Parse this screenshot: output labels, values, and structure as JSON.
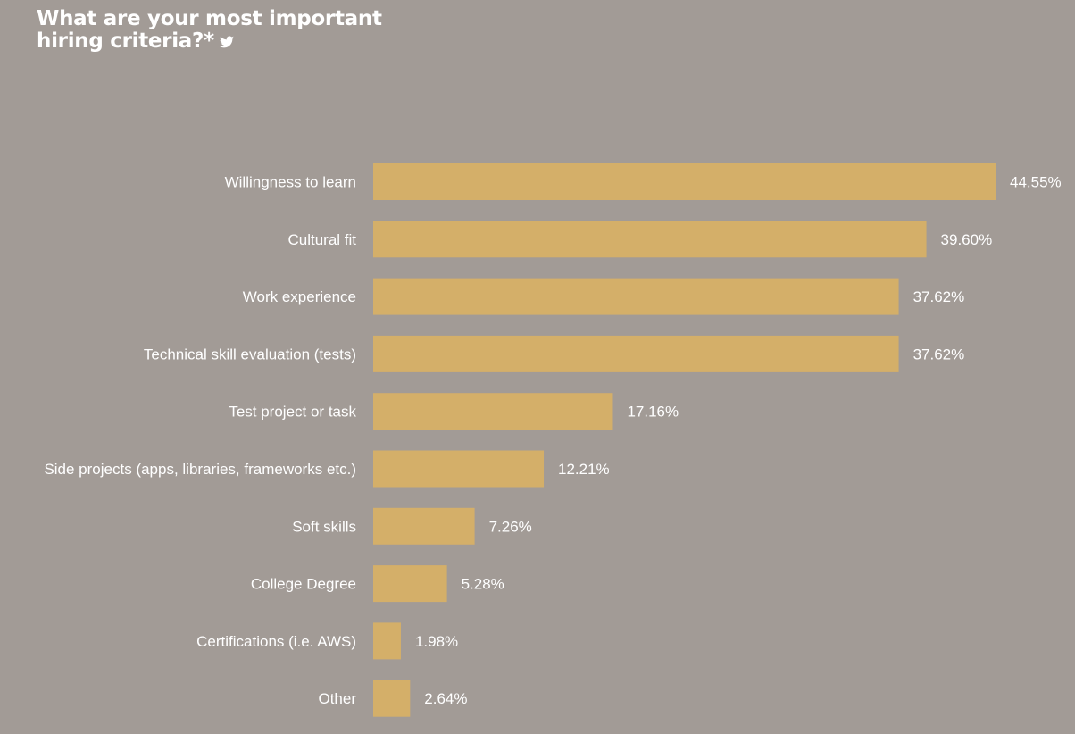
{
  "header": {
    "title_line1": "What are your most important",
    "title_line2": "hiring criteria?*",
    "share_icon": "twitter-icon"
  },
  "colors": {
    "background": "#a29b96",
    "bar": "#d4af69",
    "text": "#ffffff"
  },
  "chart_data": {
    "type": "bar",
    "orientation": "horizontal",
    "title": "What are your most important hiring criteria?*",
    "categories": [
      "Willingness to learn",
      "Cultural fit",
      "Work experience",
      "Technical skill evaluation (tests)",
      "Test project or task",
      "Side projects (apps, libraries, frameworks etc.)",
      "Soft skills",
      "College Degree",
      "Certifications (i.e. AWS)",
      "Other"
    ],
    "values": [
      44.55,
      39.6,
      37.62,
      37.62,
      17.16,
      12.21,
      7.26,
      5.28,
      1.98,
      2.64
    ],
    "value_labels": [
      "44.55%",
      "39.60%",
      "37.62%",
      "37.62%",
      "17.16%",
      "12.21%",
      "7.26%",
      "5.28%",
      "1.98%",
      "2.64%"
    ],
    "xlabel": "",
    "ylabel": "",
    "grid": false,
    "legend": "none"
  }
}
